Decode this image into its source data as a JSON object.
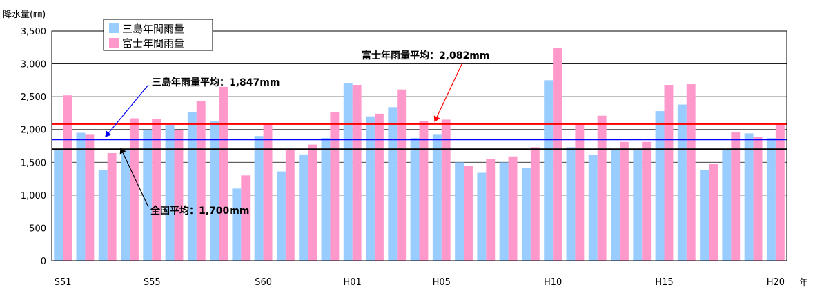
{
  "chart_data": {
    "type": "bar",
    "ylabel": "降水量(㎜)",
    "xlabel": "年",
    "ylim": [
      0,
      3500
    ],
    "yticks": [
      0,
      500,
      1000,
      1500,
      2000,
      2500,
      3000,
      3500
    ],
    "ytick_labels": [
      "0",
      "500",
      "1,000",
      "1,500",
      "2,000",
      "2,500",
      "3,000",
      "3,500"
    ],
    "grid": true,
    "legend_position": "top-left",
    "categories": [
      "S51",
      "S52",
      "S53",
      "S54",
      "S55",
      "S56",
      "S57",
      "S58",
      "S59",
      "S60",
      "S61",
      "S62",
      "S63",
      "H01",
      "H02",
      "H03",
      "H04",
      "H05",
      "H06",
      "H07",
      "H08",
      "H09",
      "H10",
      "H11",
      "H12",
      "H13",
      "H14",
      "H15",
      "H16",
      "H17",
      "H18",
      "H19",
      "H20"
    ],
    "x_tick_labels": [
      {
        "category": "S51",
        "label": "S51"
      },
      {
        "category": "S55",
        "label": "S55"
      },
      {
        "category": "S60",
        "label": "S60"
      },
      {
        "category": "H01",
        "label": "H01"
      },
      {
        "category": "H05",
        "label": "H05"
      },
      {
        "category": "H10",
        "label": "H10"
      },
      {
        "category": "H15",
        "label": "H15"
      },
      {
        "category": "H20",
        "label": "H20"
      }
    ],
    "series": [
      {
        "name": "三島年間雨量",
        "color": "#99ccff",
        "values": [
          1700,
          1950,
          1380,
          1700,
          1990,
          2070,
          2260,
          2130,
          1100,
          1900,
          1360,
          1620,
          1870,
          2710,
          2200,
          2340,
          1870,
          1930,
          1500,
          1340,
          1500,
          1410,
          2750,
          1730,
          1610,
          1700,
          1700,
          2280,
          2380,
          1380,
          1700,
          1940,
          1870
        ]
      },
      {
        "name": "富士年間雨量",
        "color": "#ff99cc",
        "values": [
          2520,
          1930,
          1640,
          2170,
          2160,
          1990,
          2430,
          2650,
          1300,
          2100,
          1700,
          1770,
          2260,
          2680,
          2240,
          2610,
          2130,
          2150,
          1440,
          1550,
          1590,
          1730,
          3240,
          2090,
          2210,
          1810,
          1810,
          2680,
          2690,
          1480,
          1960,
          1890,
          2080
        ]
      }
    ],
    "reference_lines": [
      {
        "name": "富士年雨量平均",
        "value": 2082,
        "color": "#ff0000",
        "label": "富士年雨量平均：2,082mm"
      },
      {
        "name": "三島年雨量平均",
        "value": 1847,
        "color": "#0000ff",
        "label": "三島年雨量平均：1,847mm"
      },
      {
        "name": "全国平均",
        "value": 1700,
        "color": "#000000",
        "label": "全国平均：1,700mm"
      }
    ]
  },
  "annotations": {
    "fuji_avg_label": "富士年雨量平均：2,082mm",
    "mishima_avg_label": "三島年雨量平均：1,847mm",
    "national_avg_label": "全国平均：1,700mm"
  }
}
